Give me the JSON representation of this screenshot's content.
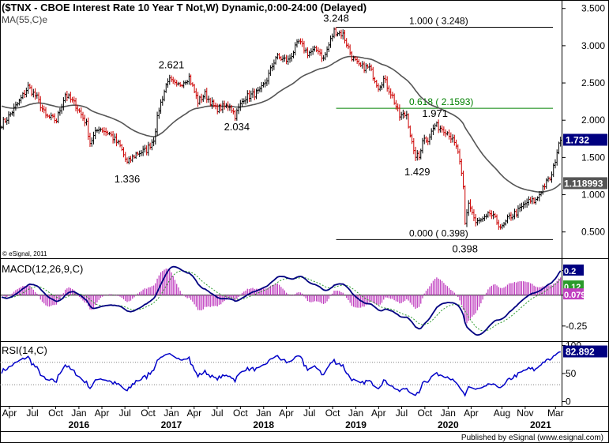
{
  "header": {
    "title": "($TNX - CBOE Interest Rate 10 Year T Not,W) Dynamic,0:00-24:00 (Delayed)",
    "ma_label": "MA(55,C)e",
    "credit_small": "© eSignal, 2011",
    "footer": "Published by eSignal (www.esignal.com)"
  },
  "colors": {
    "up": "#000000",
    "down": "#cc0000",
    "ma": "#555555",
    "fib": "#000000",
    "fib618": "#008000",
    "macd": "#000080",
    "signal": "#2a9a2a",
    "hist": "#c040c0",
    "rsi": "#0000c8",
    "price_badge_bg": "#000080",
    "ma_badge_bg": "#555555"
  },
  "chart_data": [
    {
      "type": "candlestick",
      "name": "price",
      "title": "($TNX - CBOE Interest Rate 10 Year T Not,W) Dynamic,0:00-24:00 (Delayed)",
      "ylim": [
        0.2,
        3.55
      ],
      "yticks": [
        0.5,
        1.0,
        1.5,
        2.0,
        2.5,
        3.0,
        3.5
      ],
      "ytick_labels": [
        "0.500",
        "1.000",
        "1.500",
        "2.000",
        "2.500",
        "3.000",
        "3.500"
      ],
      "x_range": [
        "2015-03-01",
        "2021-03-22"
      ],
      "anchors": [
        [
          "2015-03-01",
          1.95
        ],
        [
          "2015-03-29",
          2.05
        ],
        [
          "2015-05-10",
          2.25
        ],
        [
          "2015-06-14",
          2.45
        ],
        [
          "2015-07-19",
          2.3
        ],
        [
          "2015-08-23",
          2.05
        ],
        [
          "2015-10-04",
          2.0
        ],
        [
          "2015-11-08",
          2.35
        ],
        [
          "2015-12-20",
          2.2
        ],
        [
          "2016-01-31",
          1.95
        ],
        [
          "2016-02-14",
          1.7
        ],
        [
          "2016-03-20",
          1.9
        ],
        [
          "2016-05-01",
          1.82
        ],
        [
          "2016-06-12",
          1.65
        ],
        [
          "2016-07-10",
          1.42
        ],
        [
          "2016-08-14",
          1.55
        ],
        [
          "2016-09-25",
          1.6
        ],
        [
          "2016-10-23",
          1.75
        ],
        [
          "2016-11-13",
          2.15
        ],
        [
          "2016-12-18",
          2.55
        ],
        [
          "2017-01-22",
          2.45
        ],
        [
          "2017-03-12",
          2.58
        ],
        [
          "2017-04-16",
          2.25
        ],
        [
          "2017-05-14",
          2.35
        ],
        [
          "2017-06-25",
          2.15
        ],
        [
          "2017-08-20",
          2.2
        ],
        [
          "2017-09-10",
          2.06
        ],
        [
          "2017-10-15",
          2.3
        ],
        [
          "2017-12-17",
          2.38
        ],
        [
          "2018-01-14",
          2.55
        ],
        [
          "2018-02-18",
          2.85
        ],
        [
          "2018-04-08",
          2.8
        ],
        [
          "2018-05-20",
          3.05
        ],
        [
          "2018-06-24",
          2.9
        ],
        [
          "2018-08-05",
          2.95
        ],
        [
          "2018-08-26",
          2.82
        ],
        [
          "2018-10-07",
          3.2
        ],
        [
          "2018-11-11",
          3.15
        ],
        [
          "2018-12-16",
          2.85
        ],
        [
          "2019-01-13",
          2.72
        ],
        [
          "2019-02-24",
          2.7
        ],
        [
          "2019-03-31",
          2.45
        ],
        [
          "2019-04-21",
          2.55
        ],
        [
          "2019-05-26",
          2.32
        ],
        [
          "2019-06-23",
          2.05
        ],
        [
          "2019-07-21",
          2.08
        ],
        [
          "2019-08-18",
          1.55
        ],
        [
          "2019-09-08",
          1.5
        ],
        [
          "2019-09-22",
          1.75
        ],
        [
          "2019-10-13",
          1.75
        ],
        [
          "2019-11-10",
          1.93
        ],
        [
          "2019-12-15",
          1.88
        ],
        [
          "2020-01-05",
          1.82
        ],
        [
          "2020-02-09",
          1.58
        ],
        [
          "2020-03-01",
          1.08
        ],
        [
          "2020-03-08",
          0.6
        ],
        [
          "2020-03-22",
          0.9
        ],
        [
          "2020-04-19",
          0.62
        ],
        [
          "2020-05-31",
          0.68
        ],
        [
          "2020-06-14",
          0.75
        ],
        [
          "2020-08-02",
          0.55
        ],
        [
          "2020-08-30",
          0.7
        ],
        [
          "2020-10-04",
          0.78
        ],
        [
          "2020-11-08",
          0.9
        ],
        [
          "2020-12-13",
          0.92
        ],
        [
          "2021-01-10",
          1.1
        ],
        [
          "2021-02-14",
          1.25
        ],
        [
          "2021-03-07",
          1.58
        ],
        [
          "2021-03-21",
          1.732
        ]
      ],
      "ma_label": "MA(55,C)e",
      "last_price_label": "1.732",
      "ma_value_label": "1.118993",
      "annotations": [
        {
          "text": "3.248",
          "date": "2018-10-15",
          "value": 3.248,
          "pos": "above"
        },
        {
          "text": "2.621",
          "date": "2017-01-01",
          "value": 2.621,
          "pos": "above"
        },
        {
          "text": "2.034",
          "date": "2017-09-17",
          "value": 2.034,
          "pos": "below"
        },
        {
          "text": "1.336",
          "date": "2016-07-10",
          "value": 1.336,
          "pos": "below"
        },
        {
          "text": "1.971",
          "date": "2019-11-10",
          "value": 1.971,
          "pos": "above"
        },
        {
          "text": "1.429",
          "date": "2019-09-01",
          "value": 1.429,
          "pos": "below"
        },
        {
          "text": "0.398",
          "date": "2020-03-08",
          "value": 0.398,
          "pos": "below"
        }
      ],
      "fib_lines": [
        {
          "label": "1.000 ( 3.248)",
          "value": 3.248,
          "from": "2018-10-15",
          "color": "#000000"
        },
        {
          "label": "0.618 ( 2.1593)",
          "value": 2.1593,
          "from": "2018-10-15",
          "color": "#008000"
        },
        {
          "label": "0.000 ( 0.398)",
          "value": 0.398,
          "from": "2018-10-15",
          "color": "#000000"
        }
      ]
    },
    {
      "type": "line",
      "name": "macd",
      "label": "MACD(12,26,9,C)",
      "ylim": [
        -0.36,
        0.28
      ],
      "yticks": [
        0.2,
        0.0,
        -0.25
      ],
      "ytick_labels": [
        "0.2",
        "0",
        "-0.25"
      ],
      "badges": [
        {
          "text": "0.2",
          "bg": "#000080"
        },
        {
          "text": "0.12",
          "bg": "#2a9a2a"
        },
        {
          "text": "0.079",
          "bg": "#c040c0"
        }
      ]
    },
    {
      "type": "line",
      "name": "rsi",
      "label": "RSI(14,C)",
      "ylim": [
        -5,
        102
      ],
      "yticks": [
        100,
        50,
        0
      ],
      "ytick_labels": [
        "100",
        "50",
        "0"
      ],
      "guides": [
        70,
        30
      ],
      "last_value_label": "82.892"
    }
  ],
  "x_axis": {
    "months": [
      {
        "label": "Apr",
        "date": "2015-04-01"
      },
      {
        "label": "Jul",
        "date": "2015-07-01"
      },
      {
        "label": "Oct",
        "date": "2015-10-01"
      },
      {
        "label": "Jan",
        "date": "2016-01-01"
      },
      {
        "label": "Apr",
        "date": "2016-04-01"
      },
      {
        "label": "Jul",
        "date": "2016-07-01"
      },
      {
        "label": "Oct",
        "date": "2016-10-01"
      },
      {
        "label": "Jan",
        "date": "2017-01-01"
      },
      {
        "label": "Apr",
        "date": "2017-04-01"
      },
      {
        "label": "Jul",
        "date": "2017-07-01"
      },
      {
        "label": "Oct",
        "date": "2017-10-01"
      },
      {
        "label": "Jan",
        "date": "2018-01-01"
      },
      {
        "label": "Apr",
        "date": "2018-04-01"
      },
      {
        "label": "Jul",
        "date": "2018-07-01"
      },
      {
        "label": "Oct",
        "date": "2018-10-01"
      },
      {
        "label": "Jan",
        "date": "2019-01-01"
      },
      {
        "label": "Apr",
        "date": "2019-04-01"
      },
      {
        "label": "Jul",
        "date": "2019-07-01"
      },
      {
        "label": "Oct",
        "date": "2019-10-01"
      },
      {
        "label": "Jan",
        "date": "2020-01-01"
      },
      {
        "label": "Apr",
        "date": "2020-04-01"
      },
      {
        "label": "Aug",
        "date": "2020-08-01"
      },
      {
        "label": "Nov",
        "date": "2020-11-01"
      },
      {
        "label": "Mar",
        "date": "2021-03-01"
      }
    ],
    "years": [
      {
        "label": "2016",
        "date": "2016-01-01"
      },
      {
        "label": "2017",
        "date": "2017-01-01"
      },
      {
        "label": "2018",
        "date": "2018-01-01"
      },
      {
        "label": "2019",
        "date": "2019-01-01"
      },
      {
        "label": "2020",
        "date": "2020-01-01"
      },
      {
        "label": "2021",
        "date": "2021-01-01"
      }
    ]
  }
}
